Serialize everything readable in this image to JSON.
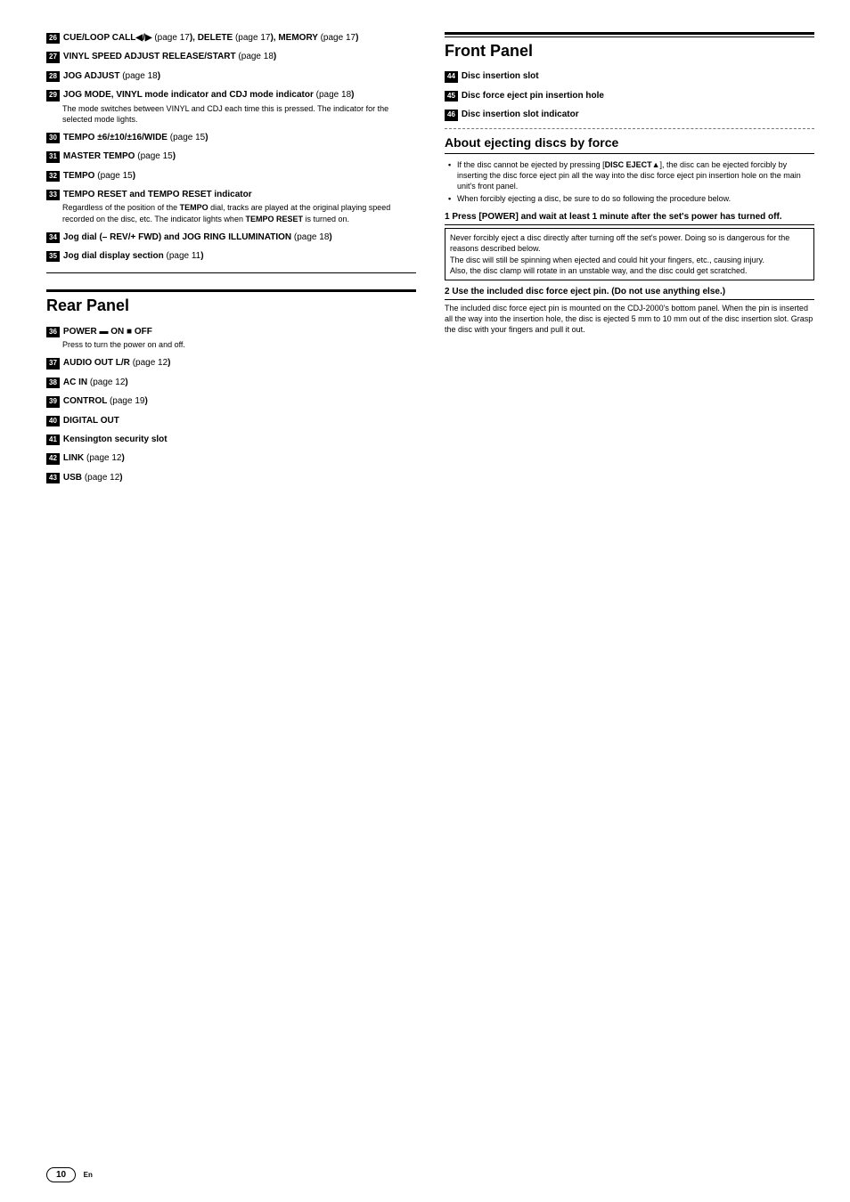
{
  "left": {
    "items_a": [
      {
        "num": "26",
        "title": "CUE/LOOP CALL◀/▶ (page 17), DELETE (page 17), MEMORY (page 17)"
      },
      {
        "num": "27",
        "title": "VINYL SPEED ADJUST RELEASE/START (page 18)"
      },
      {
        "num": "28",
        "title": "JOG ADJUST (page 18)"
      },
      {
        "num": "29",
        "title": "JOG MODE, VINYL mode indicator and CDJ mode indicator (page 18)",
        "desc": "The mode switches between VINYL and CDJ each time this is pressed. The indicator for the selected mode lights."
      },
      {
        "num": "30",
        "title": "TEMPO ±6/±10/±16/WIDE (page 15)"
      },
      {
        "num": "31",
        "title": "MASTER TEMPO (page 15)"
      },
      {
        "num": "32",
        "title": "TEMPO (page 15)"
      },
      {
        "num": "33",
        "title": "TEMPO RESET and TEMPO RESET indicator",
        "desc_html": "Regardless of the position of the <b>TEMPO</b> dial, tracks are played at the original playing speed recorded on the disc, etc. The indicator lights when <b>TEMPO RESET</b> is turned on."
      },
      {
        "num": "34",
        "title": "Jog dial (– REV/+ FWD) and JOG RING ILLUMINATION (page 18)"
      },
      {
        "num": "35",
        "title": "Jog dial display section (page 11)"
      }
    ],
    "rear_head": "Rear Panel",
    "items_b": [
      {
        "num": "36",
        "title": "POWER ▬ ON ■ OFF",
        "desc": "Press to turn the power on and off."
      },
      {
        "num": "37",
        "title": "AUDIO OUT L/R (page 12)"
      },
      {
        "num": "38",
        "title": "AC IN (page 12)"
      },
      {
        "num": "39",
        "title": "CONTROL (page 19)"
      },
      {
        "num": "40",
        "title": "DIGITAL OUT"
      },
      {
        "num": "41",
        "title": "Kensington security slot"
      },
      {
        "num": "42",
        "title": "LINK (page 12)"
      },
      {
        "num": "43",
        "title": "USB (page 12)"
      }
    ]
  },
  "right": {
    "front_head": "Front Panel",
    "front_items": [
      {
        "num": "44",
        "title": "Disc insertion slot"
      },
      {
        "num": "45",
        "title": "Disc force eject pin insertion hole"
      },
      {
        "num": "46",
        "title": "Disc insertion slot indicator"
      }
    ],
    "eject_head": "About ejecting discs by force",
    "bullets": [
      "If the disc cannot be ejected by pressing [<b>DISC EJECT</b>▲], the disc can be ejected forcibly by inserting the disc force eject pin all the way into the disc force eject pin insertion hole on the main unit's front panel.",
      "When forcibly ejecting a disc, be sure to do so following the procedure below."
    ],
    "step1_head": "1    Press [POWER] and wait at least 1 minute after the set's power has turned off.",
    "warn_box": "Never forcibly eject a disc directly after turning off the set's power. Doing so is dangerous for the reasons described below.\nThe disc will still be spinning when ejected and could hit your fingers, etc., causing injury.\nAlso, the disc clamp will rotate in an unstable way, and the disc could get scratched.",
    "step2_head": "2    Use the included disc force eject pin. (Do not use anything else.)",
    "step2_body": "The included disc force eject pin is mounted on the CDJ-2000's bottom panel. When the pin is inserted all the way into the insertion hole, the disc is ejected 5 mm to 10 mm out of the disc insertion slot. Grasp the disc with your fingers and pull it out."
  },
  "page_num": "10",
  "page_lang": "En"
}
